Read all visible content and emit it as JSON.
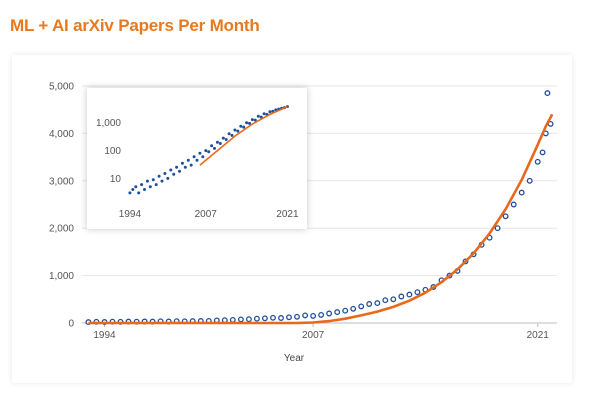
{
  "title": "ML + AI arXiv Papers Per Month",
  "chart_data": [
    {
      "type": "scatter",
      "title": "ML + AI arXiv Papers Per Month",
      "xlabel": "Year",
      "ylabel": "",
      "xlim": [
        1992.6,
        2022.2
      ],
      "ylim": [
        0,
        5000
      ],
      "y_ticks": [
        0,
        1000,
        2000,
        3000,
        4000,
        5000
      ],
      "y_tick_labels": [
        "0",
        "1,000",
        "2,000",
        "3,000",
        "4,000",
        "5,000"
      ],
      "x_ticks": [
        1994,
        2007,
        2021
      ],
      "x_tick_labels": [
        "1994",
        "2007",
        "2021"
      ],
      "grid": "horizontal",
      "series": [
        {
          "style": "open-circle markers",
          "color": "#1f4e9c",
          "points": [
            [
              1993,
              20
            ],
            [
              1993.5,
              25
            ],
            [
              1994,
              22
            ],
            [
              1994.5,
              28
            ],
            [
              1995,
              25
            ],
            [
              1995.5,
              30
            ],
            [
              1996,
              28
            ],
            [
              1996.5,
              32
            ],
            [
              1997,
              30
            ],
            [
              1997.5,
              35
            ],
            [
              1998,
              32
            ],
            [
              1998.5,
              38
            ],
            [
              1999,
              36
            ],
            [
              1999.5,
              40
            ],
            [
              2000,
              42
            ],
            [
              2000.5,
              45
            ],
            [
              2001,
              55
            ],
            [
              2001.5,
              60
            ],
            [
              2002,
              65
            ],
            [
              2002.5,
              75
            ],
            [
              2003,
              80
            ],
            [
              2003.5,
              90
            ],
            [
              2004,
              100
            ],
            [
              2004.5,
              110
            ],
            [
              2005,
              105
            ],
            [
              2005.5,
              120
            ],
            [
              2006,
              130
            ],
            [
              2006.5,
              160
            ],
            [
              2007,
              150
            ],
            [
              2007.5,
              170
            ],
            [
              2008,
              200
            ],
            [
              2008.5,
              230
            ],
            [
              2009,
              260
            ],
            [
              2009.5,
              300
            ],
            [
              2010,
              350
            ],
            [
              2010.5,
              400
            ],
            [
              2011,
              420
            ],
            [
              2011.5,
              480
            ],
            [
              2012,
              500
            ],
            [
              2012.5,
              560
            ],
            [
              2013,
              600
            ],
            [
              2013.5,
              650
            ],
            [
              2014,
              700
            ],
            [
              2014.5,
              760
            ],
            [
              2015,
              900
            ],
            [
              2015.5,
              1000
            ],
            [
              2016,
              1100
            ],
            [
              2016.5,
              1300
            ],
            [
              2017,
              1450
            ],
            [
              2017.5,
              1650
            ],
            [
              2018,
              1800
            ],
            [
              2018.5,
              2000
            ],
            [
              2019,
              2250
            ],
            [
              2019.5,
              2500
            ],
            [
              2020,
              2750
            ],
            [
              2020.5,
              3000
            ],
            [
              2021,
              3400
            ],
            [
              2021.3,
              3600
            ],
            [
              2021.5,
              4000
            ],
            [
              2021.6,
              4850
            ],
            [
              2021.8,
              4200
            ]
          ]
        },
        {
          "style": "trend line",
          "color": "#e8691c",
          "points": [
            [
              1993,
              0
            ],
            [
              2006,
              0
            ],
            [
              2007,
              10
            ],
            [
              2008,
              40
            ],
            [
              2009,
              90
            ],
            [
              2010,
              160
            ],
            [
              2011,
              240
            ],
            [
              2012,
              340
            ],
            [
              2013,
              470
            ],
            [
              2014,
              640
            ],
            [
              2015,
              860
            ],
            [
              2016,
              1130
            ],
            [
              2017,
              1470
            ],
            [
              2018,
              1890
            ],
            [
              2019,
              2400
            ],
            [
              2020,
              3020
            ],
            [
              2021,
              3760
            ],
            [
              2021.5,
              4150
            ],
            [
              2021.9,
              4400
            ]
          ]
        }
      ]
    },
    {
      "type": "scatter",
      "title": "",
      "xlabel": "",
      "ylabel": "",
      "xlim": [
        1993.5,
        2022.3
      ],
      "ylim": [
        1.2,
        4000
      ],
      "yscale": "log",
      "y_ticks": [
        10,
        100,
        1000
      ],
      "y_tick_labels": [
        "10",
        "100",
        "1,000"
      ],
      "x_ticks": [
        1994,
        2007,
        2021
      ],
      "x_tick_labels": [
        "1994",
        "2007",
        "2021"
      ],
      "grid": "none",
      "series": [
        {
          "style": "filled dot markers",
          "color": "#1f4e9c",
          "points": [
            [
              1994,
              3
            ],
            [
              1994.5,
              4
            ],
            [
              1995,
              5
            ],
            [
              1995.5,
              3
            ],
            [
              1996,
              6
            ],
            [
              1996.5,
              4
            ],
            [
              1997,
              8
            ],
            [
              1997.5,
              5
            ],
            [
              1998,
              9
            ],
            [
              1998.5,
              6
            ],
            [
              1999,
              12
            ],
            [
              1999.5,
              8
            ],
            [
              2000,
              15
            ],
            [
              2000.5,
              10
            ],
            [
              2001,
              20
            ],
            [
              2001.5,
              14
            ],
            [
              2002,
              25
            ],
            [
              2002.5,
              18
            ],
            [
              2003,
              35
            ],
            [
              2003.5,
              25
            ],
            [
              2004,
              45
            ],
            [
              2004.5,
              30
            ],
            [
              2005,
              60
            ],
            [
              2005.5,
              45
            ],
            [
              2006,
              80
            ],
            [
              2006.5,
              60
            ],
            [
              2007,
              100
            ],
            [
              2007.5,
              90
            ],
            [
              2008,
              150
            ],
            [
              2008.5,
              120
            ],
            [
              2009,
              200
            ],
            [
              2009.5,
              180
            ],
            [
              2010,
              280
            ],
            [
              2010.5,
              250
            ],
            [
              2011,
              400
            ],
            [
              2011.5,
              350
            ],
            [
              2012,
              550
            ],
            [
              2012.5,
              500
            ],
            [
              2013,
              750
            ],
            [
              2013.5,
              700
            ],
            [
              2014,
              1000
            ],
            [
              2014.5,
              950
            ],
            [
              2015,
              1300
            ],
            [
              2015.5,
              1250
            ],
            [
              2016,
              1700
            ],
            [
              2016.5,
              1600
            ],
            [
              2017,
              2100
            ],
            [
              2017.5,
              2000
            ],
            [
              2018,
              2500
            ],
            [
              2018.5,
              2600
            ],
            [
              2019,
              2900
            ],
            [
              2019.5,
              3100
            ],
            [
              2020,
              3300
            ],
            [
              2020.5,
              3500
            ],
            [
              2021,
              3800
            ]
          ]
        },
        {
          "style": "trend line",
          "color": "#e8691c",
          "points": [
            [
              2006,
              30
            ],
            [
              2009,
              100
            ],
            [
              2012,
              330
            ],
            [
              2015,
              900
            ],
            [
              2018,
              2000
            ],
            [
              2021,
              3800
            ]
          ]
        }
      ]
    }
  ]
}
